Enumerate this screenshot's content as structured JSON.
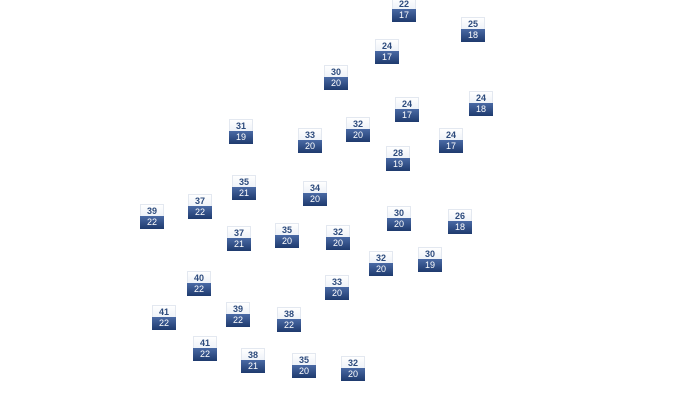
{
  "markers": [
    {
      "high": 22,
      "low": 17
    },
    {
      "high": 25,
      "low": 18
    },
    {
      "high": 24,
      "low": 17
    },
    {
      "high": 30,
      "low": 20
    },
    {
      "high": 24,
      "low": 17
    },
    {
      "high": 24,
      "low": 18
    },
    {
      "high": 31,
      "low": 19
    },
    {
      "high": 33,
      "low": 20
    },
    {
      "high": 32,
      "low": 20
    },
    {
      "high": 24,
      "low": 17
    },
    {
      "high": 28,
      "low": 19
    },
    {
      "high": 35,
      "low": 21
    },
    {
      "high": 34,
      "low": 20
    },
    {
      "high": 37,
      "low": 22
    },
    {
      "high": 39,
      "low": 22
    },
    {
      "high": 30,
      "low": 20
    },
    {
      "high": 26,
      "low": 18
    },
    {
      "high": 37,
      "low": 21
    },
    {
      "high": 35,
      "low": 20
    },
    {
      "high": 32,
      "low": 20
    },
    {
      "high": 32,
      "low": 20
    },
    {
      "high": 30,
      "low": 19
    },
    {
      "high": 40,
      "low": 22
    },
    {
      "high": 33,
      "low": 20
    },
    {
      "high": 41,
      "low": 22
    },
    {
      "high": 39,
      "low": 22
    },
    {
      "high": 38,
      "low": 22
    },
    {
      "high": 41,
      "low": 22
    },
    {
      "high": 38,
      "low": 21
    },
    {
      "high": 35,
      "low": 20
    },
    {
      "high": 32,
      "low": 20
    }
  ]
}
